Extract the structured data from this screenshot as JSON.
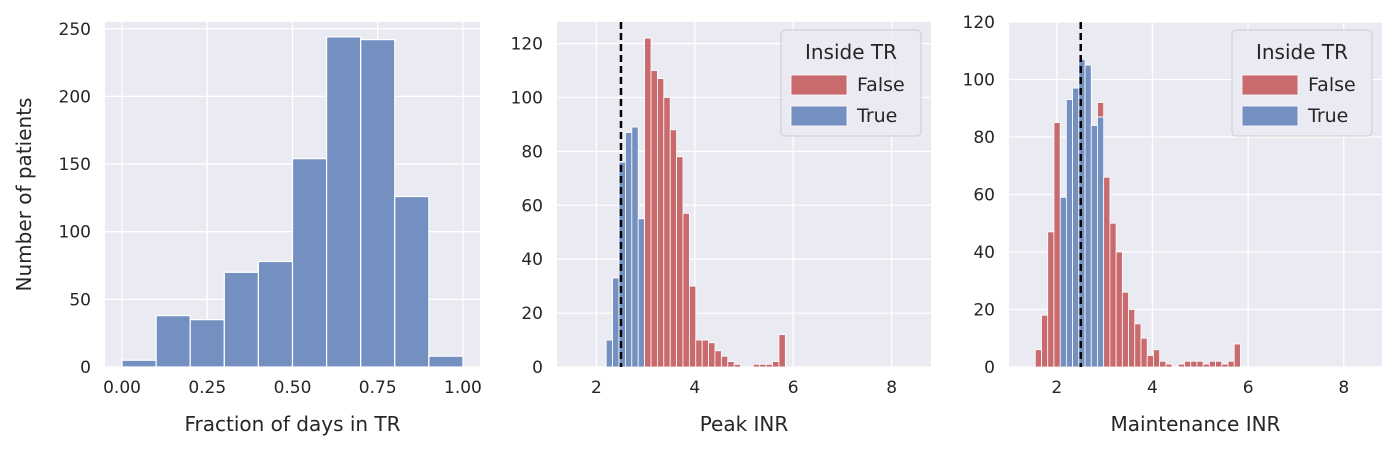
{
  "chart_data": [
    {
      "type": "bar",
      "histogram": true,
      "xlabel": "Fraction of days in TR",
      "ylabel": "Number of patients",
      "xlim": [
        -0.05,
        1.05
      ],
      "ylim": [
        0,
        255
      ],
      "xticks": [
        0.0,
        0.25,
        0.5,
        0.75,
        1.0
      ],
      "xtick_labels": [
        "0.00",
        "0.25",
        "0.50",
        "0.75",
        "1.00"
      ],
      "yticks": [
        0,
        50,
        100,
        150,
        200,
        250
      ],
      "ytick_labels": [
        "0",
        "50",
        "100",
        "150",
        "200",
        "250"
      ],
      "bin_width": 0.1,
      "bins": [
        0.0,
        0.1,
        0.2,
        0.3,
        0.4,
        0.5,
        0.6,
        0.7,
        0.8,
        0.9
      ],
      "values": [
        5,
        38,
        35,
        70,
        78,
        154,
        244,
        242,
        126,
        8
      ],
      "grid": true,
      "colors": {
        "bar": "#7490c0",
        "background": "#eaeaf2",
        "grid": "#ffffff"
      }
    },
    {
      "type": "bar",
      "histogram": true,
      "stacked": true,
      "xlabel": "Peak INR",
      "ylabel": "",
      "xlim": [
        1.2,
        8.8
      ],
      "ylim": [
        0,
        128
      ],
      "xticks": [
        2,
        4,
        6,
        8
      ],
      "xtick_labels": [
        "2",
        "4",
        "6",
        "8"
      ],
      "yticks": [
        0,
        20,
        40,
        60,
        80,
        100,
        120
      ],
      "ytick_labels": [
        "0",
        "20",
        "40",
        "60",
        "80",
        "100",
        "120"
      ],
      "bin_width": 0.13,
      "bins": [
        2.2,
        2.33,
        2.46,
        2.59,
        2.72,
        2.85,
        2.98,
        3.11,
        3.24,
        3.37,
        3.5,
        3.63,
        3.76,
        3.89,
        4.02,
        4.15,
        4.28,
        4.41,
        4.54,
        4.67,
        4.8,
        4.93,
        5.06,
        5.19,
        5.32,
        5.45,
        5.58,
        5.71,
        5.84
      ],
      "series": [
        {
          "name": "True",
          "values": [
            10,
            33,
            76,
            87,
            89,
            55,
            0,
            0,
            0,
            0,
            0,
            0,
            0,
            0,
            0,
            0,
            0,
            0,
            0,
            0,
            0,
            0,
            0,
            0,
            0,
            0,
            0,
            0,
            0
          ]
        },
        {
          "name": "False",
          "values": [
            0,
            0,
            0,
            0,
            0,
            0,
            122,
            110,
            107,
            100,
            88,
            78,
            57,
            30,
            10,
            10,
            9,
            6,
            4,
            2,
            1,
            0,
            0,
            1,
            1,
            1,
            2,
            12,
            0
          ]
        }
      ],
      "reference_line_x": 2.5,
      "legend": {
        "title": "Inside TR",
        "entries": [
          "False",
          "True"
        ],
        "position": "top-right"
      },
      "grid": true,
      "colors": {
        "False": "#c86a6e",
        "True": "#7490c0",
        "reference_line": "#000000"
      }
    },
    {
      "type": "bar",
      "histogram": true,
      "stacked": true,
      "xlabel": "Maintenance INR",
      "ylabel": "",
      "xlim": [
        1.0,
        8.8
      ],
      "ylim": [
        0,
        120
      ],
      "xticks": [
        2,
        4,
        6,
        8
      ],
      "xtick_labels": [
        "2",
        "4",
        "6",
        "8"
      ],
      "yticks": [
        0,
        20,
        40,
        60,
        80,
        100,
        120
      ],
      "ytick_labels": [
        "0",
        "20",
        "40",
        "60",
        "80",
        "100",
        "120"
      ],
      "bin_width": 0.13,
      "bins": [
        1.55,
        1.68,
        1.81,
        1.94,
        2.07,
        2.2,
        2.33,
        2.46,
        2.59,
        2.72,
        2.85,
        2.98,
        3.11,
        3.24,
        3.37,
        3.5,
        3.63,
        3.76,
        3.89,
        4.02,
        4.15,
        4.28,
        4.41,
        4.54,
        4.67,
        4.8,
        4.93,
        5.06,
        5.19,
        5.32,
        5.45,
        5.58,
        5.71,
        5.84
      ],
      "series": [
        {
          "name": "True",
          "values": [
            0,
            0,
            0,
            0,
            59,
            93,
            97,
            107,
            105,
            84,
            87,
            0,
            0,
            0,
            0,
            0,
            0,
            0,
            0,
            0,
            0,
            0,
            0,
            0,
            0,
            0,
            0,
            0,
            0,
            0,
            0,
            0,
            0,
            0
          ]
        },
        {
          "name": "False",
          "values": [
            6,
            18,
            47,
            85,
            0,
            0,
            0,
            0,
            0,
            0,
            5,
            66,
            50,
            40,
            26,
            20,
            15,
            10,
            4,
            6,
            2,
            1,
            0,
            1,
            2,
            2,
            2,
            1,
            2,
            2,
            1,
            2,
            8,
            0
          ]
        }
      ],
      "reference_line_x": 2.5,
      "legend": {
        "title": "Inside TR",
        "entries": [
          "False",
          "True"
        ],
        "position": "top-right"
      },
      "grid": true,
      "colors": {
        "False": "#c86a6e",
        "True": "#7490c0",
        "reference_line": "#000000"
      }
    }
  ]
}
